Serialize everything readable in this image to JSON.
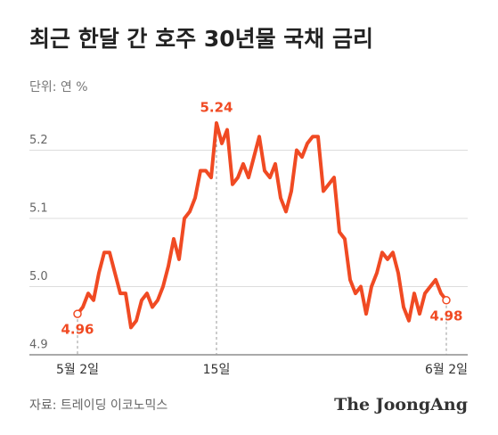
{
  "chart_data": {
    "type": "line",
    "title": "최근 한달 간 호주 30년물 국채 금리",
    "subtitle": "단위: 연 %",
    "categories": [
      "5월 2일",
      null,
      null,
      null,
      null,
      null,
      null,
      null,
      null,
      null,
      null,
      null,
      null,
      null,
      null,
      null,
      null,
      null,
      null,
      null,
      null,
      null,
      null,
      null,
      null,
      null,
      "15일",
      null,
      null,
      null,
      null,
      null,
      null,
      null,
      null,
      null,
      null,
      null,
      null,
      null,
      null,
      null,
      null,
      null,
      null,
      null,
      null,
      null,
      null,
      null,
      null,
      null,
      null,
      null,
      null,
      null,
      null,
      null,
      null,
      null,
      null,
      null,
      null,
      null,
      null,
      null,
      null,
      null,
      null,
      "6월 2일"
    ],
    "values": [
      4.96,
      4.97,
      4.99,
      4.98,
      5.02,
      5.05,
      5.05,
      5.02,
      4.99,
      4.99,
      4.94,
      4.95,
      4.98,
      4.99,
      4.97,
      4.98,
      5.0,
      5.03,
      5.07,
      5.04,
      5.1,
      5.11,
      5.13,
      5.17,
      5.17,
      5.16,
      5.24,
      5.21,
      5.23,
      5.15,
      5.16,
      5.18,
      5.16,
      5.19,
      5.22,
      5.17,
      5.16,
      5.18,
      5.13,
      5.11,
      5.14,
      5.2,
      5.19,
      5.21,
      5.22,
      5.22,
      5.14,
      5.15,
      5.16,
      5.08,
      5.07,
      5.01,
      4.99,
      5.0,
      4.96,
      5.0,
      5.02,
      5.05,
      5.04,
      5.05,
      5.02,
      4.97,
      4.95,
      4.99,
      4.96,
      4.99,
      5.0,
      5.01,
      4.99,
      4.98
    ],
    "value_labels": [
      "4.96",
      null,
      null,
      null,
      null,
      null,
      null,
      null,
      null,
      null,
      null,
      null,
      null,
      null,
      null,
      null,
      null,
      null,
      null,
      null,
      null,
      null,
      null,
      null,
      null,
      null,
      "5.24",
      null,
      null,
      null,
      null,
      null,
      null,
      null,
      null,
      null,
      null,
      null,
      null,
      null,
      null,
      null,
      null,
      null,
      null,
      null,
      null,
      null,
      null,
      null,
      null,
      null,
      null,
      null,
      null,
      null,
      null,
      null,
      null,
      null,
      null,
      null,
      null,
      null,
      null,
      null,
      null,
      null,
      null,
      "4.98"
    ],
    "color": "#f04a23",
    "ylim": [
      4.9,
      5.27
    ],
    "yticks": [
      4.9,
      {
        "value": 5,
        "label": "5.0"
      },
      5.1,
      5.2
    ],
    "grid": true,
    "source": "자료: 트레이딩 이코노믹스",
    "logo": "The JoongAng"
  }
}
